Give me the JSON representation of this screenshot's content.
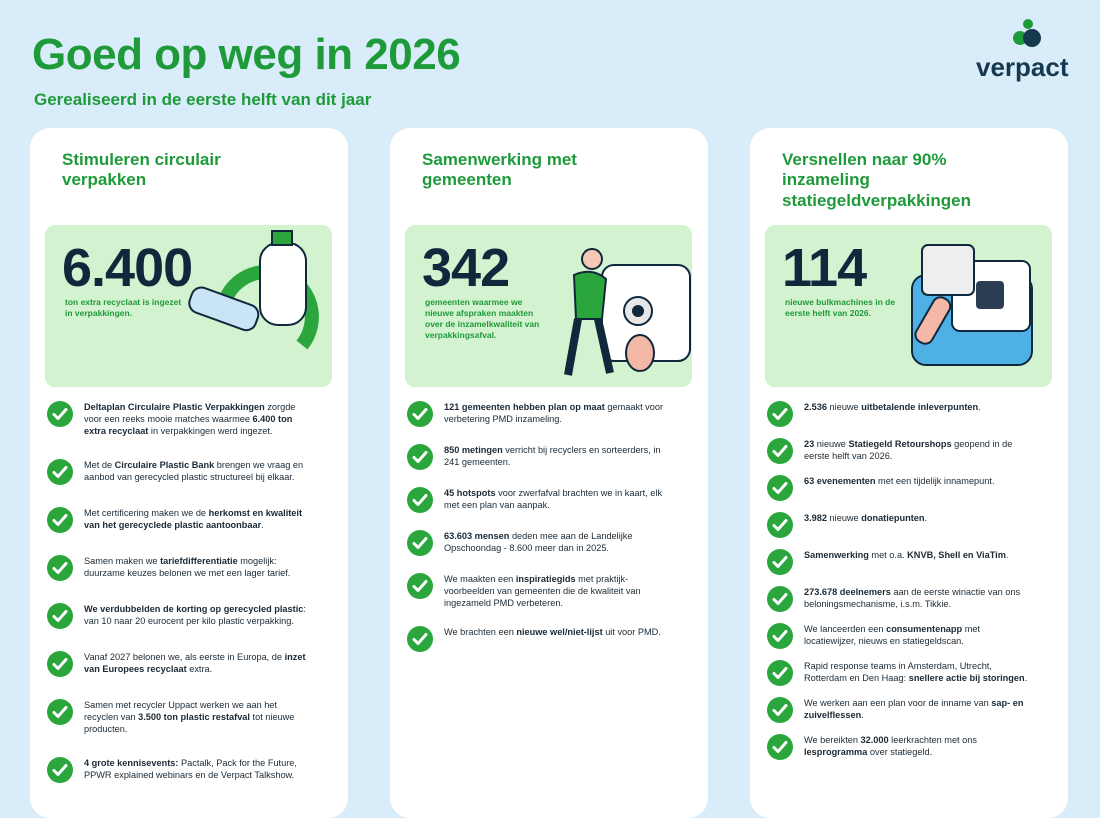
{
  "header": {
    "title": "Goed op weg in 2026",
    "subtitle": "Gerealiseerd in de eerste helft van dit jaar"
  },
  "logo": "verpact",
  "columns": [
    {
      "title": "Stimuleren circulair verpakken",
      "stat": {
        "number": "6.400",
        "caption": "ton extra recyclaat is ingezet in verpakkingen."
      },
      "items": [
        [
          {
            "bold": "Deltaplan Circulaire Plastic Verpakkingen"
          },
          " zorgde voor een reeks mooie matches waarmee ",
          {
            "bold": "6.400 ton extra recyclaat"
          },
          " in verpakkingen werd ingezet."
        ],
        [
          "Met de ",
          {
            "bold": "Circulaire Plastic Bank"
          },
          " brengen we vraag en aanbod van gerecycled plastic structureel bij elkaar."
        ],
        [
          "Met certificering maken we de ",
          {
            "bold": "herkomst en kwaliteit van het gerecyclede plastic aantoonbaar"
          },
          "."
        ],
        [
          "Samen maken we ",
          {
            "bold": "tariefdifferentiatie"
          },
          " mogelijk: duurzame keuzes belonen we met een lager tarief."
        ],
        [
          {
            "bold": "We verdubbelden de korting op gerecycled plastic"
          },
          ": van 10 naar 20 eurocent per kilo plastic verpakking."
        ],
        [
          "Vanaf 2027 belonen we, als eerste in Europa, de ",
          {
            "bold": "inzet van Europees recyclaat"
          },
          " extra."
        ],
        [
          "Samen met recycler Uppact werken we aan het recyclen van ",
          {
            "bold": "3.500 ton plastic restafval"
          },
          " tot nieuwe producten."
        ],
        [
          {
            "bold": "4 grote kennisevents:"
          },
          " Pactalk, Pack for the Future, PPWR explained webinars en de Verpact Talkshow."
        ]
      ]
    },
    {
      "title": "Samenwerking met gemeenten",
      "stat": {
        "number": "342",
        "caption": "gemeenten waarmee we nieuwe afspraken maakten over de inzamelkwaliteit van verpakkingsafval."
      },
      "items": [
        [
          {
            "bold": "121 gemeenten hebben plan op maat"
          },
          " gemaakt voor verbetering PMD inzameling."
        ],
        [
          {
            "bold": "850 metingen"
          },
          " verricht bij recyclers en sorteerders, in 241 gemeenten."
        ],
        [
          {
            "bold": "45 hotspots"
          },
          " voor zwerfafval brachten we in kaart, elk met een plan van aanpak."
        ],
        [
          {
            "bold": "63.603 mensen"
          },
          " deden mee aan de Landelijke Opschoondag - 8.600 meer dan in 2025."
        ],
        [
          "We maakten een ",
          {
            "bold": "inspiratiegids"
          },
          " met praktijk-voorbeelden van gemeenten die de kwaliteit van ingezameld PMD verbeteren."
        ],
        [
          "We brachten een ",
          {
            "bold": "nieuwe wel/niet-lijst"
          },
          " uit voor PMD."
        ]
      ]
    },
    {
      "title": "Versnellen naar 90% inzameling statiegeldverpakkingen",
      "stat": {
        "number": "114",
        "caption": "nieuwe bulkmachines in de eerste helft van 2026."
      },
      "items": [
        [
          {
            "bold": "2.536"
          },
          " nieuwe ",
          {
            "bold": "uitbetalende inleverpunten"
          },
          "."
        ],
        [
          {
            "bold": "23"
          },
          " nieuwe ",
          {
            "bold": "Statiegeld Retourshops"
          },
          " geopend in de eerste helft van 2026."
        ],
        [
          {
            "bold": "63 evenementen"
          },
          " met een tijdelijk innamepunt."
        ],
        [
          {
            "bold": "3.982"
          },
          " nieuwe ",
          {
            "bold": "donatiepunten"
          },
          "."
        ],
        [
          {
            "bold": "Samenwerking"
          },
          " met o.a. ",
          {
            "bold": "KNVB, Shell en ViaTim"
          },
          "."
        ],
        [
          {
            "bold": "273.678 deelnemers"
          },
          " aan de eerste winactie van ons beloningsmechanisme, i.s.m. Tikkie."
        ],
        [
          "We lanceerden een ",
          {
            "bold": "consumentenapp"
          },
          " met locatiewijzer, nieuws en statiegeldscan."
        ],
        [
          "Rapid response teams in Amsterdam, Utrecht, Rotterdam en Den Haag: ",
          {
            "bold": "snellere actie bij storingen"
          },
          "."
        ],
        [
          "We werken aan een plan voor de inname van ",
          {
            "bold": "sap- en zuivelflessen"
          },
          "."
        ],
        [
          "We bereikten ",
          {
            "bold": "32.000"
          },
          " leerkrachten met ons ",
          {
            "bold": "lesprogramma"
          },
          " over statiegeld."
        ]
      ]
    }
  ]
}
